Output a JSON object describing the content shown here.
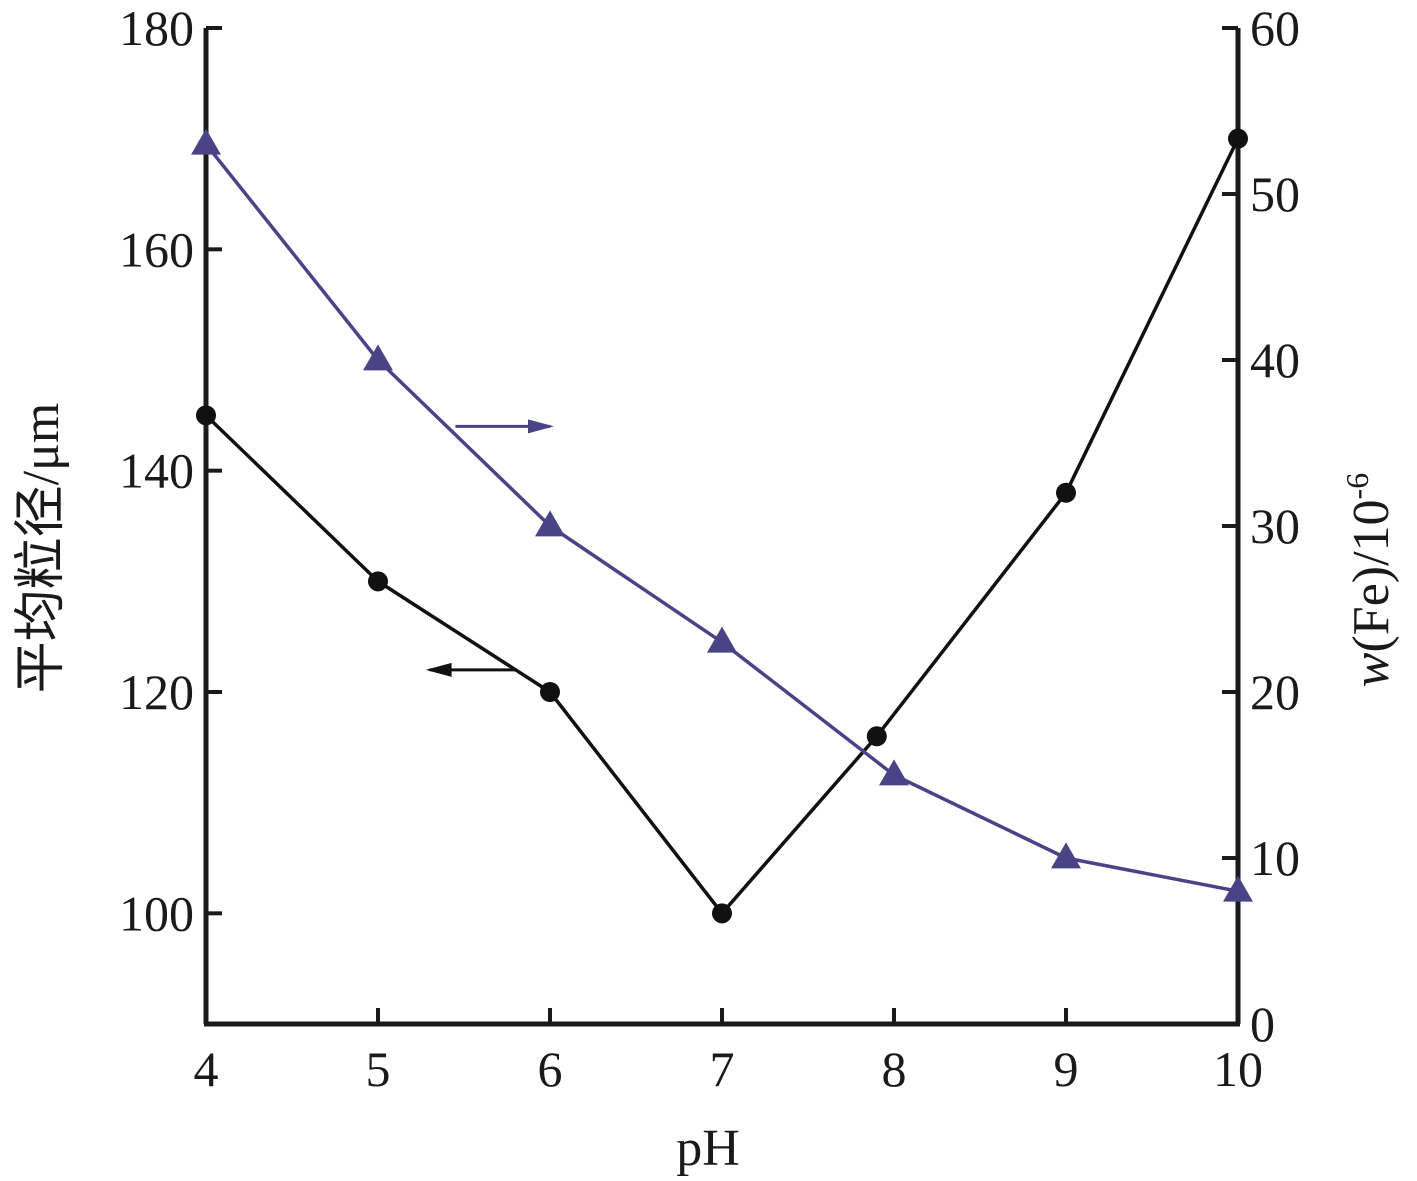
{
  "chart_data": {
    "type": "line",
    "xlabel": "pH",
    "ylabel_left": "平均粒径/μm",
    "ylabel_right_prefix": "w(Fe)/10",
    "ylabel_right_exponent": "-6",
    "xlim": [
      4,
      10
    ],
    "ylim_left": [
      90,
      180
    ],
    "ylim_right": [
      0,
      60
    ],
    "x_ticks": [
      4,
      5,
      6,
      7,
      8,
      9,
      10
    ],
    "y_left_ticks": [
      100,
      120,
      140,
      160,
      180
    ],
    "y_right_ticks": [
      0,
      10,
      20,
      30,
      40,
      50,
      60
    ],
    "grid": false,
    "colors": {
      "particle_size": "#111111",
      "fe_content": "#4a4386"
    },
    "series": [
      {
        "axis": "left",
        "marker": "circle",
        "color_key": "particle_size",
        "x": [
          4,
          5,
          6,
          7,
          7.9,
          9,
          10
        ],
        "y": [
          145,
          130,
          120,
          100,
          116,
          138,
          170
        ]
      },
      {
        "axis": "right",
        "marker": "triangle",
        "color_key": "fe_content",
        "x": [
          4,
          5,
          6,
          7,
          8,
          9,
          10
        ],
        "y": [
          53,
          40,
          30,
          23,
          15,
          10,
          8
        ]
      }
    ],
    "annotations": [
      {
        "type": "arrow",
        "direction": "left",
        "series_axis": "left",
        "color_key": "particle_size",
        "x_from": 5.8,
        "x_to": 5.3,
        "y_left": 122
      },
      {
        "type": "arrow",
        "direction": "right",
        "series_axis": "right",
        "color_key": "fe_content",
        "x_from": 5.45,
        "x_to": 6.0,
        "y_right": 36
      }
    ]
  }
}
